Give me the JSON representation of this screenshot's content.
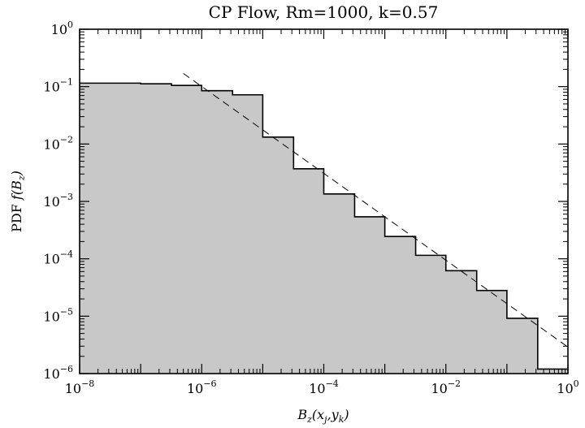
{
  "chart_data": {
    "type": "area",
    "title": "CP Flow, Rm=1000, k=0.57",
    "xlabel": {
      "prefix": "B",
      "sub1": "z",
      "mid": "(x",
      "sub2": "j",
      "comma": ",y",
      "sub3": "k",
      "suffix": ")"
    },
    "ylabel": {
      "prefix": "PDF ",
      "f": "f",
      "open": "(B",
      "sub": "z",
      "close": ")"
    },
    "x_scale": "log",
    "y_scale": "log",
    "xlim": [
      1e-08,
      1
    ],
    "ylim": [
      1e-06,
      1
    ],
    "grid": false,
    "x_ticks": [
      {
        "base": "10",
        "exp": "−8",
        "value": 1e-08
      },
      {
        "base": "10",
        "exp": "−6",
        "value": 1e-06
      },
      {
        "base": "10",
        "exp": "−4",
        "value": 0.0001
      },
      {
        "base": "10",
        "exp": "−2",
        "value": 0.01
      },
      {
        "base": "10",
        "exp": "0",
        "value": 1
      }
    ],
    "y_ticks": [
      {
        "base": "10",
        "exp": "0",
        "value": 1
      },
      {
        "base": "10",
        "exp": "−1",
        "value": 0.1
      },
      {
        "base": "10",
        "exp": "−2",
        "value": 0.01
      },
      {
        "base": "10",
        "exp": "−3",
        "value": 0.001
      },
      {
        "base": "10",
        "exp": "−4",
        "value": 0.0001
      },
      {
        "base": "10",
        "exp": "−5",
        "value": 1e-05
      },
      {
        "base": "10",
        "exp": "−6",
        "value": 1e-06
      }
    ],
    "histogram": {
      "fill_color": "#c8c8c8",
      "edges": [
        1e-08,
        1e-07,
        3.2e-07,
        1e-06,
        3.2e-06,
        1e-05,
        3.2e-05,
        0.0001,
        0.00032,
        0.001,
        0.0032,
        0.01,
        0.032,
        0.1,
        0.32,
        1
      ],
      "values": [
        0.115,
        0.112,
        0.105,
        0.085,
        0.072,
        0.0132,
        0.0037,
        0.00135,
        0.00054,
        0.000245,
        0.000115,
        6.2e-05,
        2.8e-05,
        9.2e-06,
        1.2e-06
      ]
    },
    "fit_line": {
      "style": "dashed",
      "points": [
        [
          5e-07,
          0.17
        ],
        [
          1,
          2.9e-06
        ]
      ]
    }
  }
}
